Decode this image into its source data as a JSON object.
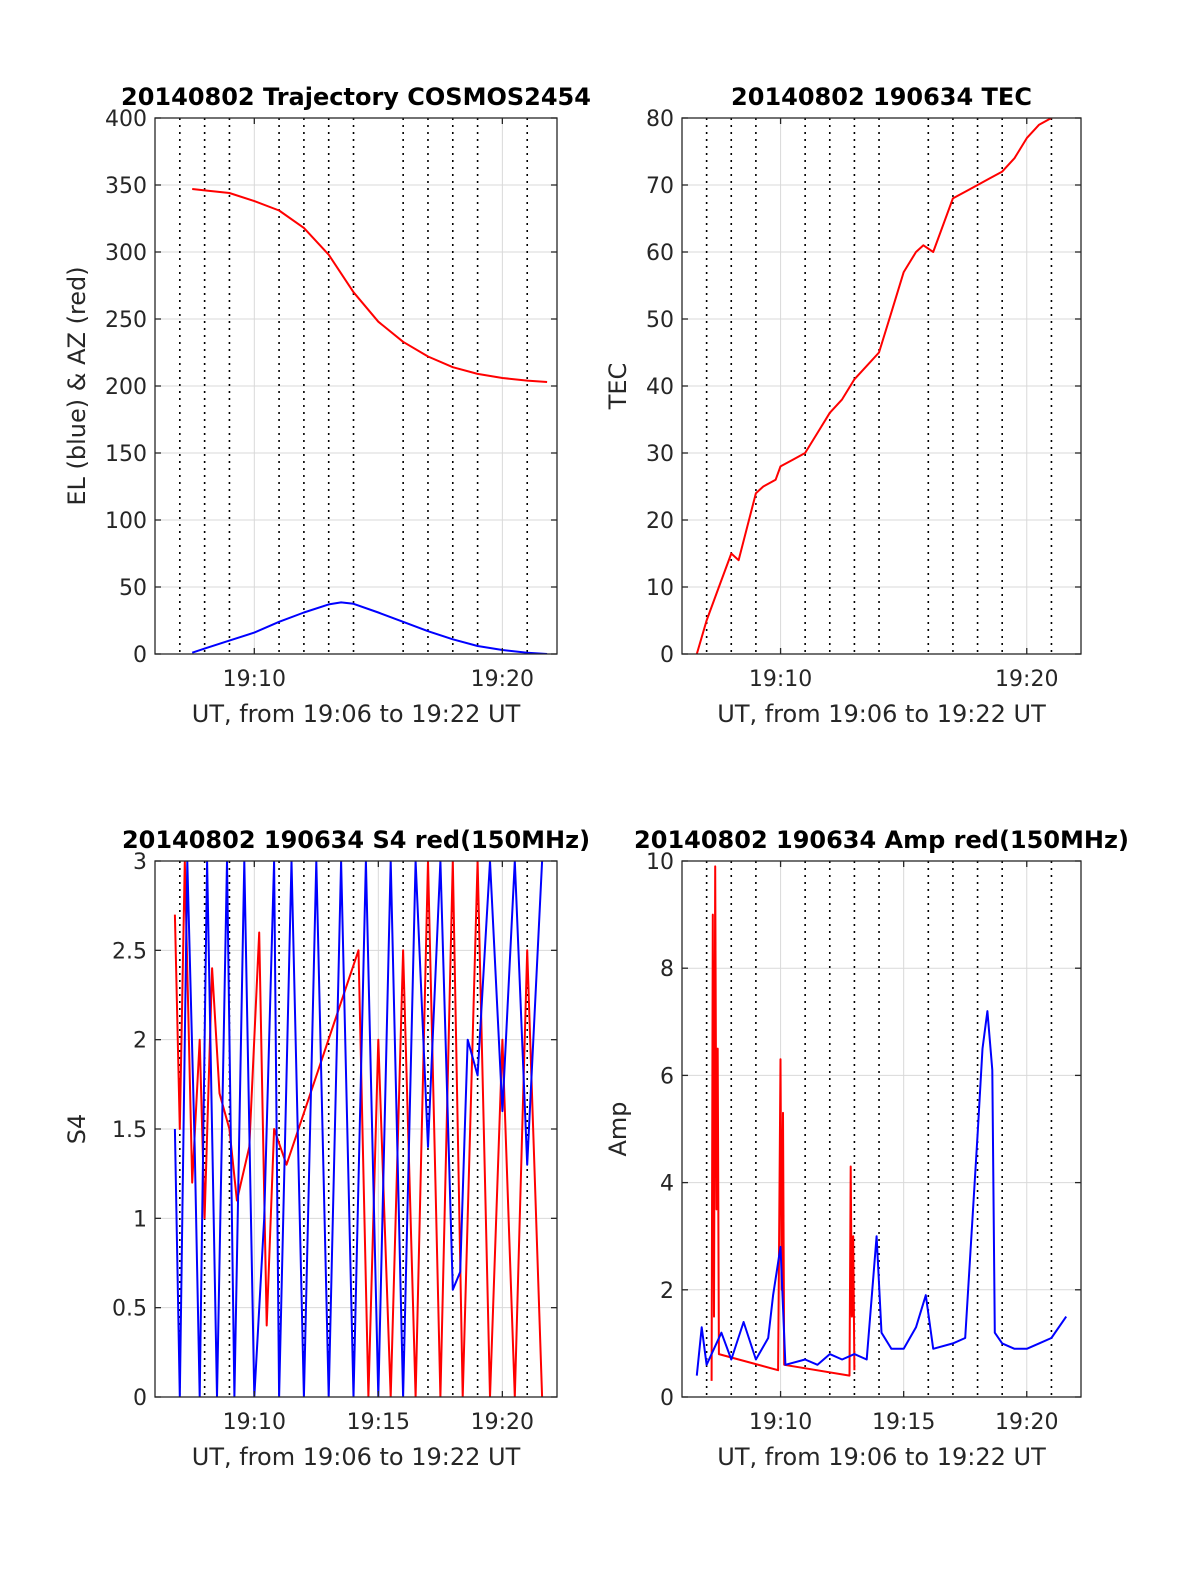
{
  "colors": {
    "red": "#ff0000",
    "blue": "#0000ff",
    "grid": "#d9d9d9",
    "axis": "#262626"
  },
  "chart_data": [
    {
      "type": "line",
      "title": "20140802 Trajectory COSMOS2454",
      "xlabel": "UT, from 19:06 to 19:22 UT",
      "ylabel": "EL (blue) & AZ (red)",
      "xlim": [
        19.1,
        19.37
      ],
      "ylim": [
        0,
        400
      ],
      "yticks": [
        0,
        50,
        100,
        150,
        200,
        250,
        300,
        350,
        400
      ],
      "xticks": [
        {
          "value": 19.1667,
          "label": "19:10"
        },
        {
          "value": 19.3333,
          "label": "19:20"
        }
      ],
      "minor_vlines_min": [
        7,
        8,
        9,
        11,
        12,
        13,
        14,
        16,
        17,
        18,
        19,
        21
      ],
      "grid": "on",
      "series": [
        {
          "color": "red",
          "points": [
            [
              7.5,
              347
            ],
            [
              8,
              346
            ],
            [
              9,
              344
            ],
            [
              10,
              338
            ],
            [
              11,
              331
            ],
            [
              12,
              318
            ],
            [
              13,
              298
            ],
            [
              13.5,
              284
            ],
            [
              14,
              270
            ],
            [
              15,
              248
            ],
            [
              16,
              233
            ],
            [
              17,
              222
            ],
            [
              18,
              214
            ],
            [
              19,
              209
            ],
            [
              20,
              206
            ],
            [
              21,
              204
            ],
            [
              21.8,
              203
            ]
          ]
        },
        {
          "color": "blue",
          "points": [
            [
              7.5,
              1
            ],
            [
              8,
              4
            ],
            [
              9,
              10
            ],
            [
              10,
              16
            ],
            [
              11,
              24
            ],
            [
              12,
              31
            ],
            [
              13,
              37
            ],
            [
              13.5,
              38.5
            ],
            [
              14,
              37.5
            ],
            [
              15,
              31
            ],
            [
              16,
              24
            ],
            [
              17,
              17
            ],
            [
              18,
              11
            ],
            [
              19,
              6
            ],
            [
              20,
              3
            ],
            [
              21,
              1
            ],
            [
              21.8,
              0
            ]
          ]
        }
      ]
    },
    {
      "type": "line",
      "title": "20140802 190634 TEC",
      "xlabel": "UT, from 19:06 to 19:22 UT",
      "ylabel": "TEC",
      "xlim": [
        19.1,
        19.37
      ],
      "ylim": [
        0,
        80
      ],
      "yticks": [
        0,
        10,
        20,
        30,
        40,
        50,
        60,
        70,
        80
      ],
      "xticks": [
        {
          "value": 19.1667,
          "label": "19:10"
        },
        {
          "value": 19.3333,
          "label": "19:20"
        }
      ],
      "minor_vlines_min": [
        7,
        8,
        9,
        11,
        12,
        13,
        14,
        16,
        17,
        18,
        19,
        21
      ],
      "grid": "on",
      "series": [
        {
          "color": "red",
          "points": [
            [
              6.6,
              0
            ],
            [
              7,
              5
            ],
            [
              7.5,
              10
            ],
            [
              8,
              15
            ],
            [
              8.3,
              14
            ],
            [
              9,
              24
            ],
            [
              9.3,
              25
            ],
            [
              9.8,
              26
            ],
            [
              10,
              28
            ],
            [
              10.5,
              29
            ],
            [
              11,
              30
            ],
            [
              11.5,
              33
            ],
            [
              12,
              36
            ],
            [
              12.5,
              38
            ],
            [
              13,
              41
            ],
            [
              13.5,
              43
            ],
            [
              14,
              45
            ],
            [
              14.5,
              51
            ],
            [
              15,
              57
            ],
            [
              15.5,
              60
            ],
            [
              15.8,
              61
            ],
            [
              16.2,
              60
            ],
            [
              16.5,
              63
            ],
            [
              17,
              68
            ],
            [
              17.5,
              69
            ],
            [
              18,
              70
            ],
            [
              18.5,
              71
            ],
            [
              19,
              72
            ],
            [
              19.5,
              74
            ],
            [
              20,
              77
            ],
            [
              20.5,
              79
            ],
            [
              21,
              80
            ]
          ]
        }
      ]
    },
    {
      "type": "line",
      "title": "20140802 190634 S4 red(150MHz)",
      "xlabel": "UT, from 19:06 to 19:22 UT",
      "ylabel": "S4",
      "xlim": [
        19.1,
        19.37
      ],
      "ylim": [
        0,
        3
      ],
      "yticks": [
        0,
        0.5,
        1,
        1.5,
        2,
        2.5,
        3
      ],
      "xticks": [
        {
          "value": 19.1667,
          "label": "19:10"
        },
        {
          "value": 19.25,
          "label": "19:15"
        },
        {
          "value": 19.3333,
          "label": "19:20"
        }
      ],
      "minor_vlines_min": [
        7,
        8,
        9,
        11,
        12,
        13,
        14,
        16,
        17,
        18,
        19,
        21
      ],
      "grid": "on",
      "series": [
        {
          "color": "red",
          "points": [
            [
              6.8,
              2.7
            ],
            [
              7.0,
              1.5
            ],
            [
              7.2,
              3
            ],
            [
              7.5,
              1.2
            ],
            [
              7.8,
              2.0
            ],
            [
              8.0,
              1.0
            ],
            [
              8.3,
              2.4
            ],
            [
              8.6,
              1.7
            ],
            [
              9.0,
              1.5
            ],
            [
              9.3,
              1.1
            ],
            [
              9.8,
              1.4
            ],
            [
              10.2,
              2.6
            ],
            [
              10.5,
              0.4
            ],
            [
              10.8,
              1.5
            ],
            [
              11.3,
              1.3
            ],
            [
              14.2,
              2.5
            ],
            [
              14.6,
              0
            ],
            [
              15.0,
              2.0
            ],
            [
              15.5,
              0
            ],
            [
              16.0,
              2.5
            ],
            [
              16.5,
              0
            ],
            [
              17.0,
              3
            ],
            [
              17.5,
              0
            ],
            [
              18.0,
              3
            ],
            [
              18.4,
              0
            ],
            [
              19.0,
              3
            ],
            [
              19.5,
              0
            ],
            [
              20.0,
              2
            ],
            [
              20.5,
              0
            ],
            [
              21.0,
              2.5
            ],
            [
              21.6,
              0
            ]
          ]
        },
        {
          "color": "blue",
          "points": [
            [
              6.8,
              1.5
            ],
            [
              7.0,
              0
            ],
            [
              7.3,
              3
            ],
            [
              7.6,
              1.4
            ],
            [
              7.8,
              0
            ],
            [
              8.1,
              3
            ],
            [
              8.5,
              0
            ],
            [
              8.9,
              3
            ],
            [
              9.2,
              0
            ],
            [
              9.6,
              3
            ],
            [
              10.0,
              0
            ],
            [
              10.4,
              1.0
            ],
            [
              10.8,
              3
            ],
            [
              11.0,
              0
            ],
            [
              11.5,
              3
            ],
            [
              12.0,
              0
            ],
            [
              12.5,
              3
            ],
            [
              13.0,
              0
            ],
            [
              13.5,
              3
            ],
            [
              14.0,
              0
            ],
            [
              14.5,
              3
            ],
            [
              15.0,
              0
            ],
            [
              15.5,
              3
            ],
            [
              16.0,
              0
            ],
            [
              16.5,
              3
            ],
            [
              17.0,
              1.4
            ],
            [
              17.5,
              3
            ],
            [
              18.0,
              0.6
            ],
            [
              18.3,
              0.7
            ],
            [
              18.6,
              2.0
            ],
            [
              19.0,
              1.8
            ],
            [
              19.5,
              3
            ],
            [
              20.0,
              1.6
            ],
            [
              20.5,
              3
            ],
            [
              21.0,
              1.3
            ],
            [
              21.6,
              3
            ]
          ]
        }
      ]
    },
    {
      "type": "line",
      "title": "20140802 190634 Amp red(150MHz)",
      "xlabel": "UT, from 19:06 to 19:22 UT",
      "ylabel": "Amp",
      "xlim": [
        19.1,
        19.37
      ],
      "ylim": [
        0,
        10
      ],
      "yticks": [
        0,
        2,
        4,
        6,
        8,
        10
      ],
      "xticks": [
        {
          "value": 19.1667,
          "label": "19:10"
        },
        {
          "value": 19.25,
          "label": "19:15"
        },
        {
          "value": 19.3333,
          "label": "19:20"
        }
      ],
      "minor_vlines_min": [
        7,
        8,
        9,
        11,
        12,
        13,
        14,
        16,
        17,
        18,
        19,
        21
      ],
      "grid": "on",
      "series": [
        {
          "color": "red",
          "points": [
            [
              7.2,
              0.3
            ],
            [
              7.25,
              9.0
            ],
            [
              7.3,
              1.5
            ],
            [
              7.35,
              9.9
            ],
            [
              7.4,
              3.5
            ],
            [
              7.45,
              6.5
            ],
            [
              7.5,
              0.8
            ],
            [
              9.9,
              0.5
            ],
            [
              10.0,
              6.3
            ],
            [
              10.05,
              2.0
            ],
            [
              10.1,
              5.3
            ],
            [
              10.15,
              0.6
            ],
            [
              12.8,
              0.4
            ],
            [
              12.85,
              4.3
            ],
            [
              12.9,
              1.5
            ],
            [
              12.95,
              3.0
            ],
            [
              13.0,
              0.5
            ]
          ]
        },
        {
          "color": "blue",
          "points": [
            [
              6.6,
              0.4
            ],
            [
              6.8,
              1.3
            ],
            [
              7.0,
              0.6
            ],
            [
              7.6,
              1.2
            ],
            [
              8.0,
              0.7
            ],
            [
              8.5,
              1.4
            ],
            [
              9.0,
              0.7
            ],
            [
              9.5,
              1.1
            ],
            [
              9.7,
              1.9
            ],
            [
              10.0,
              2.8
            ],
            [
              10.2,
              0.6
            ],
            [
              11.0,
              0.7
            ],
            [
              11.5,
              0.6
            ],
            [
              12.0,
              0.8
            ],
            [
              12.5,
              0.7
            ],
            [
              13.0,
              0.8
            ],
            [
              13.5,
              0.7
            ],
            [
              13.9,
              3.0
            ],
            [
              14.1,
              1.2
            ],
            [
              14.5,
              0.9
            ],
            [
              15.0,
              0.9
            ],
            [
              15.5,
              1.3
            ],
            [
              15.9,
              1.9
            ],
            [
              16.2,
              0.9
            ],
            [
              17.0,
              1.0
            ],
            [
              17.5,
              1.1
            ],
            [
              18.0,
              4.9
            ],
            [
              18.2,
              6.5
            ],
            [
              18.4,
              7.2
            ],
            [
              18.6,
              6.1
            ],
            [
              18.7,
              1.2
            ],
            [
              19.0,
              1.0
            ],
            [
              19.5,
              0.9
            ],
            [
              20.0,
              0.9
            ],
            [
              20.5,
              1.0
            ],
            [
              21.0,
              1.1
            ],
            [
              21.6,
              1.5
            ]
          ]
        }
      ]
    }
  ]
}
